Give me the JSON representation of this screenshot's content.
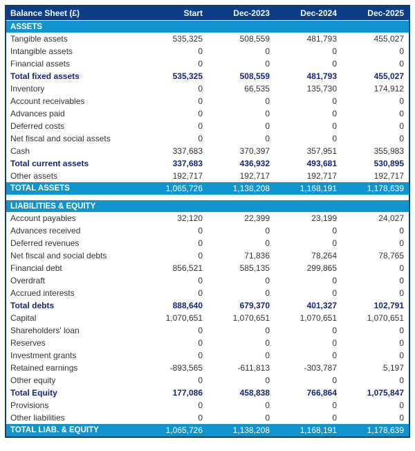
{
  "colors": {
    "header_navy": "#0c3e87",
    "band_blue": "#1094ce",
    "subtotal_navy": "#17257c",
    "body_text": "#333333"
  },
  "table": {
    "title": "Balance Sheet (£)",
    "columns": [
      "Start",
      "Dec-2023",
      "Dec-2024",
      "Dec-2025"
    ],
    "sections": [
      {
        "header": "ASSETS",
        "rows": [
          {
            "label": "Tangible assets",
            "type": "normal",
            "values": [
              "535,325",
              "508,559",
              "481,793",
              "455,027"
            ]
          },
          {
            "label": "Intangible assets",
            "type": "normal",
            "values": [
              "0",
              "0",
              "0",
              "0"
            ]
          },
          {
            "label": "Financial assets",
            "type": "normal",
            "values": [
              "0",
              "0",
              "0",
              "0"
            ]
          },
          {
            "label": "Total fixed assets",
            "type": "subtotal",
            "values": [
              "535,325",
              "508,559",
              "481,793",
              "455,027"
            ]
          },
          {
            "label": "Inventory",
            "type": "normal",
            "values": [
              "0",
              "66,535",
              "135,730",
              "174,912"
            ]
          },
          {
            "label": "Account receivables",
            "type": "normal",
            "values": [
              "0",
              "0",
              "0",
              "0"
            ]
          },
          {
            "label": "Advances paid",
            "type": "normal",
            "values": [
              "0",
              "0",
              "0",
              "0"
            ]
          },
          {
            "label": "Deferred costs",
            "type": "normal",
            "values": [
              "0",
              "0",
              "0",
              "0"
            ]
          },
          {
            "label": "Net fiscal and social assets",
            "type": "normal",
            "values": [
              "0",
              "0",
              "0",
              "0"
            ]
          },
          {
            "label": "Cash",
            "type": "normal",
            "values": [
              "337,683",
              "370,397",
              "357,951",
              "355,983"
            ]
          },
          {
            "label": "Total current assets",
            "type": "subtotal",
            "values": [
              "337,683",
              "436,932",
              "493,681",
              "530,895"
            ]
          },
          {
            "label": "Other assets",
            "type": "normal",
            "values": [
              "192,717",
              "192,717",
              "192,717",
              "192,717"
            ]
          },
          {
            "label": "TOTAL ASSETS",
            "type": "total",
            "values": [
              "1,065,726",
              "1,138,208",
              "1,168,191",
              "1,178,639"
            ]
          }
        ]
      },
      {
        "header": "LIABILITIES & EQUITY",
        "rows": [
          {
            "label": "Account payables",
            "type": "normal",
            "values": [
              "32,120",
              "22,399",
              "23,199",
              "24,027"
            ]
          },
          {
            "label": "Advances received",
            "type": "normal",
            "values": [
              "0",
              "0",
              "0",
              "0"
            ]
          },
          {
            "label": "Deferred revenues",
            "type": "normal",
            "values": [
              "0",
              "0",
              "0",
              "0"
            ]
          },
          {
            "label": "Net fiscal and social debts",
            "type": "normal",
            "values": [
              "0",
              "71,836",
              "78,264",
              "78,765"
            ]
          },
          {
            "label": "Financial debt",
            "type": "normal",
            "values": [
              "856,521",
              "585,135",
              "299,865",
              "0"
            ]
          },
          {
            "label": "Overdraft",
            "type": "normal",
            "values": [
              "0",
              "0",
              "0",
              "0"
            ]
          },
          {
            "label": "Accrued interests",
            "type": "normal",
            "values": [
              "0",
              "0",
              "0",
              "0"
            ]
          },
          {
            "label": "Total debts",
            "type": "subtotal",
            "values": [
              "888,640",
              "679,370",
              "401,327",
              "102,791"
            ]
          },
          {
            "label": "Capital",
            "type": "normal",
            "values": [
              "1,070,651",
              "1,070,651",
              "1,070,651",
              "1,070,651"
            ]
          },
          {
            "label": "Shareholders' loan",
            "type": "normal",
            "values": [
              "0",
              "0",
              "0",
              "0"
            ]
          },
          {
            "label": "Reserves",
            "type": "normal",
            "values": [
              "0",
              "0",
              "0",
              "0"
            ]
          },
          {
            "label": "Investment grants",
            "type": "normal",
            "values": [
              "0",
              "0",
              "0",
              "0"
            ]
          },
          {
            "label": "Retained earnings",
            "type": "normal",
            "values": [
              "-893,565",
              "-611,813",
              "-303,787",
              "5,197"
            ]
          },
          {
            "label": "Other equity",
            "type": "normal",
            "values": [
              "0",
              "0",
              "0",
              "0"
            ]
          },
          {
            "label": "Total Equity",
            "type": "subtotal",
            "values": [
              "177,086",
              "458,838",
              "766,864",
              "1,075,847"
            ]
          },
          {
            "label": "Provisions",
            "type": "normal",
            "values": [
              "0",
              "0",
              "0",
              "0"
            ]
          },
          {
            "label": "Other liabilities",
            "type": "normal",
            "values": [
              "0",
              "0",
              "0",
              "0"
            ]
          },
          {
            "label": "TOTAL LIAB. & EQUITY",
            "type": "total",
            "values": [
              "1,065,726",
              "1,138,208",
              "1,168,191",
              "1,178,639"
            ]
          }
        ]
      }
    ]
  }
}
